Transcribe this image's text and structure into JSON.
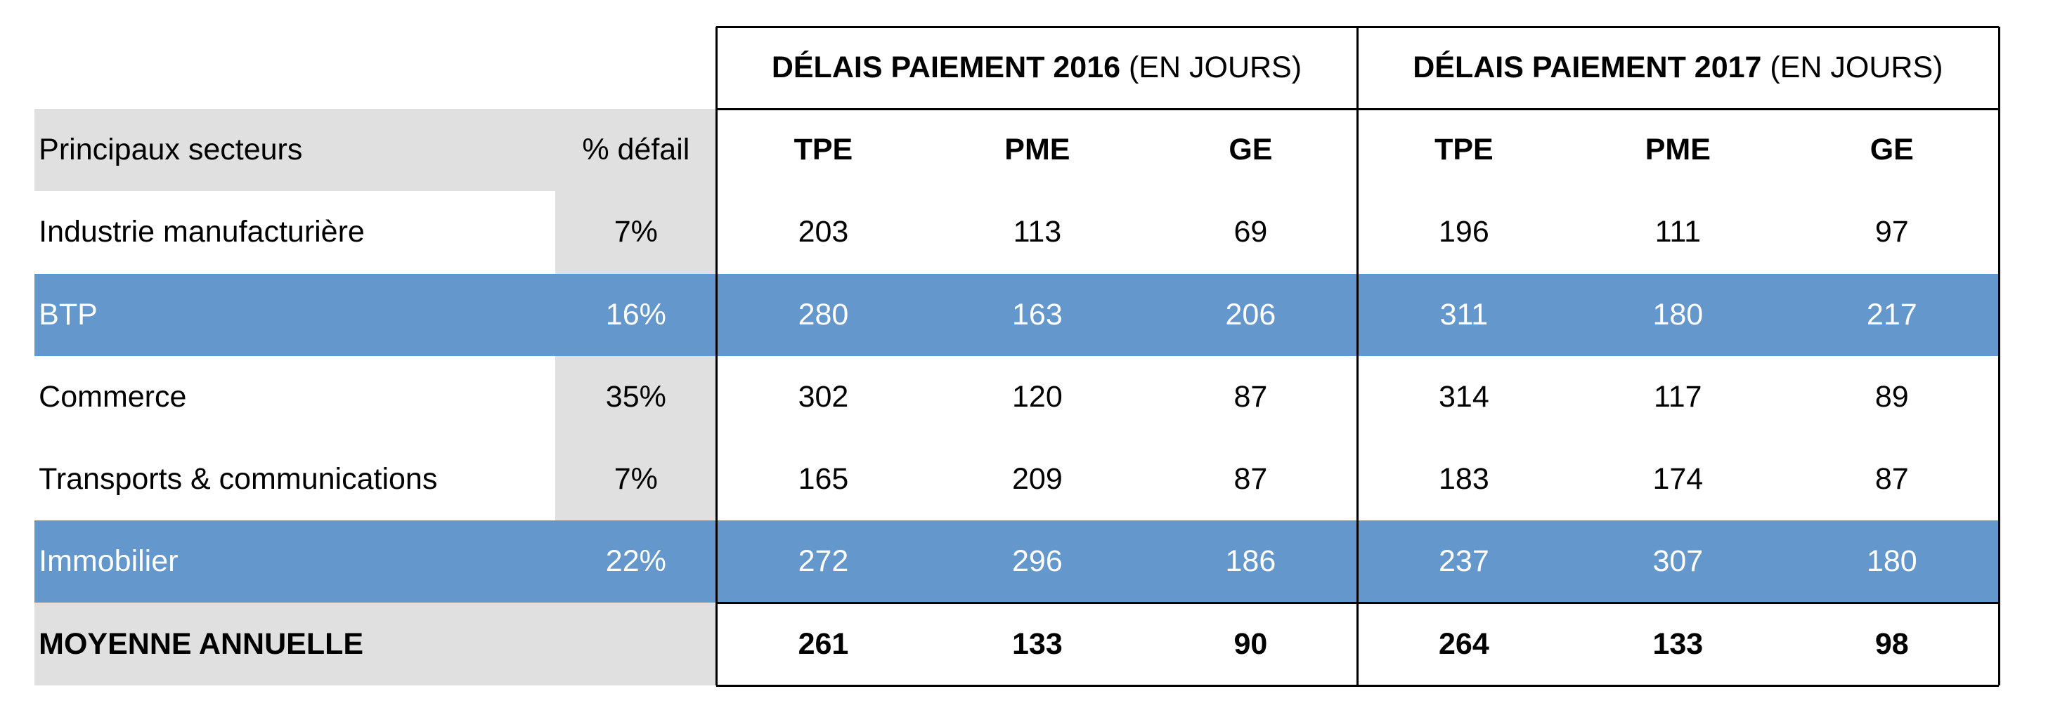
{
  "chart_data": {
    "type": "table",
    "header_groups": [
      {
        "bold": "DÉLAIS PAIEMENT 2016",
        "normal": " (EN JOURS)"
      },
      {
        "bold": "DÉLAIS PAIEMENT 2017",
        "normal": " (EN JOURS)"
      }
    ],
    "columns": [
      "Principaux secteurs",
      "% défail",
      "TPE",
      "PME",
      "GE",
      "TPE",
      "PME",
      "GE"
    ],
    "rows": [
      {
        "cells": [
          "Industrie manufacturière",
          "7%",
          "203",
          "113",
          "69",
          "196",
          "111",
          "97"
        ],
        "style": "plain"
      },
      {
        "cells": [
          "BTP",
          "16%",
          "280",
          "163",
          "206",
          "311",
          "180",
          "217"
        ],
        "style": "highlight"
      },
      {
        "cells": [
          "Commerce",
          "35%",
          "302",
          "120",
          "87",
          "314",
          "117",
          "89"
        ],
        "style": "plain"
      },
      {
        "cells": [
          "Transports & communications",
          "7%",
          "165",
          "209",
          "87",
          "183",
          "174",
          "87"
        ],
        "style": "plain"
      },
      {
        "cells": [
          "Immobilier",
          "22%",
          "272",
          "296",
          "186",
          "237",
          "307",
          "180"
        ],
        "style": "highlight"
      },
      {
        "cells": [
          "MOYENNE ANNUELLE",
          "",
          "261",
          "133",
          "90",
          "264",
          "133",
          "98"
        ],
        "style": "total"
      }
    ],
    "colors": {
      "highlight": "#6497cb",
      "label_shade": "#e0e0e0",
      "text_on_highlight": "#ffffff"
    }
  }
}
